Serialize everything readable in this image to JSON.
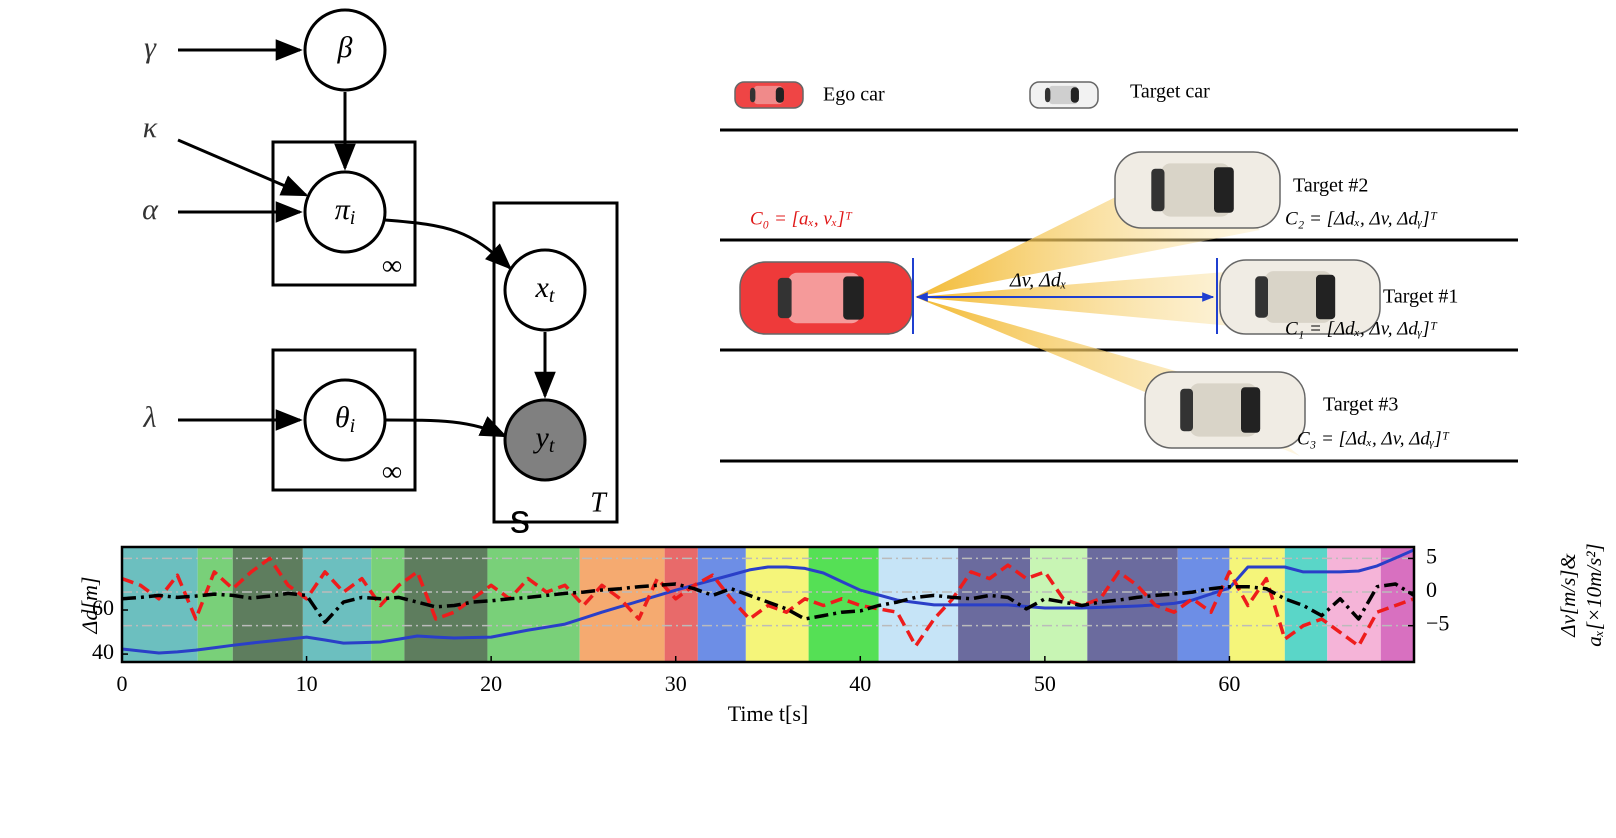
{
  "fragment_text": "s",
  "graphical_model": {
    "inputs": [
      "γ",
      "κ",
      "α",
      "λ"
    ],
    "nodes": [
      {
        "label": "β"
      },
      {
        "label": "π",
        "sub": "i"
      },
      {
        "label": "x",
        "sub": "t"
      },
      {
        "label": "θ",
        "sub": "i"
      },
      {
        "label": "y",
        "sub": "t",
        "observed": true
      }
    ],
    "plates": [
      "∞",
      "∞",
      "T"
    ]
  },
  "scene": {
    "legend": [
      "Ego car",
      "Target car"
    ],
    "ego_state": "C₀ = [aₓ, vₓ]ᵀ",
    "relation": "Δv, Δdₓ",
    "targets": [
      {
        "name": "Target #2",
        "state": "C₂ = [Δdₓ, Δv, Δdᵧ]ᵀ"
      },
      {
        "name": "Target #1",
        "state": "C₁ = [Δdₓ, Δv, Δdᵧ]ᵀ"
      },
      {
        "name": "Target #3",
        "state": "C₃ = [Δdₓ, Δv, Δdᵧ]ᵀ"
      }
    ]
  },
  "chart_data": {
    "type": "line",
    "xlabel": "Time t[s]",
    "ylabel": "Δd[m]",
    "y2label": [
      "Δv[m/s]&",
      "aₓ[×10m/s²]"
    ],
    "xlim": [
      0,
      70
    ],
    "xticks": [
      0,
      10,
      20,
      30,
      40,
      50,
      60
    ],
    "ylim": [
      36.4,
      88.6
    ],
    "yticks": [
      40,
      60
    ],
    "y2lim": [
      -10.4,
      6.7
    ],
    "y2ticks": [
      {
        "value": -5,
        "label": "−5"
      },
      0,
      5
    ],
    "grid": true,
    "regions": [
      {
        "start": 0,
        "end": 4.1,
        "color": "#6cbfbf"
      },
      {
        "start": 4.1,
        "end": 6,
        "color": "#79d079"
      },
      {
        "start": 6,
        "end": 9.8,
        "color": "#5e7d5e"
      },
      {
        "start": 9.8,
        "end": 13.5,
        "color": "#6cbfbf"
      },
      {
        "start": 13.5,
        "end": 15.3,
        "color": "#79d079"
      },
      {
        "start": 15.3,
        "end": 19.8,
        "color": "#5e7d5e"
      },
      {
        "start": 19.8,
        "end": 24.8,
        "color": "#79d079"
      },
      {
        "start": 24.8,
        "end": 29.4,
        "color": "#f5aa70"
      },
      {
        "start": 29.4,
        "end": 31.2,
        "color": "#e86a6a"
      },
      {
        "start": 31.2,
        "end": 33.8,
        "color": "#6d8ee6"
      },
      {
        "start": 33.8,
        "end": 37.2,
        "color": "#f5f57a"
      },
      {
        "start": 37.2,
        "end": 41,
        "color": "#55e055"
      },
      {
        "start": 41,
        "end": 45.3,
        "color": "#c6e4f7"
      },
      {
        "start": 45.3,
        "end": 49.2,
        "color": "#6b6b9e"
      },
      {
        "start": 49.2,
        "end": 52.3,
        "color": "#c8f5b4"
      },
      {
        "start": 52.3,
        "end": 57.2,
        "color": "#6b6b9e"
      },
      {
        "start": 57.2,
        "end": 60,
        "color": "#6d8ee6"
      },
      {
        "start": 60,
        "end": 63,
        "color": "#f5f57a"
      },
      {
        "start": 63,
        "end": 65.3,
        "color": "#5ad6c8"
      },
      {
        "start": 65.3,
        "end": 68.2,
        "color": "#f5b4d8"
      },
      {
        "start": 68.2,
        "end": 70,
        "color": "#d870c0"
      }
    ],
    "x": [
      0,
      1,
      2,
      3,
      4,
      5,
      6,
      7,
      8,
      9,
      10,
      11,
      12,
      13,
      14,
      15,
      16,
      17,
      18,
      19,
      20,
      21,
      22,
      23,
      24,
      25,
      26,
      27,
      28,
      29,
      30,
      31,
      32,
      33,
      34,
      35,
      36,
      37,
      38,
      39,
      40,
      41,
      42,
      43,
      44,
      45,
      46,
      47,
      48,
      49,
      50,
      51,
      52,
      53,
      54,
      55,
      56,
      57,
      58,
      59,
      60,
      61,
      62,
      63,
      64,
      65,
      66,
      67,
      68,
      69,
      70
    ],
    "series": [
      {
        "color": "#2a3fc8",
        "style": "solid",
        "values": [
          42.3,
          41.4,
          40.5,
          41,
          41.8,
          42.9,
          44,
          45,
          45.9,
          46.8,
          47.7,
          46.4,
          45,
          45.2,
          45.5,
          46.8,
          48.2,
          47.7,
          47.3,
          47.5,
          47.7,
          49.3,
          50.9,
          52.2,
          53.6,
          56.3,
          59,
          61.5,
          64,
          66.5,
          69,
          71.3,
          73.6,
          75.9,
          78.2,
          79.5,
          79.5,
          78.9,
          76.8,
          72.9,
          69,
          66.8,
          64.5,
          63.4,
          62.3,
          62.3,
          62.3,
          62.3,
          62.3,
          61.6,
          60.9,
          60.9,
          60.9,
          61.2,
          61.5,
          61.8,
          62.3,
          63,
          64.5,
          67.3,
          70,
          79.5,
          79.5,
          79.5,
          77.3,
          77.3,
          77.3,
          77.7,
          80,
          83.6,
          87.3
        ]
      },
      {
        "color": "#ee1c1c",
        "style": "dashed",
        "axis": "y2",
        "values": [
          2,
          1,
          -1,
          2.5,
          -4,
          3,
          0.5,
          3,
          5,
          1,
          -1,
          3,
          0,
          2,
          -2,
          1,
          3,
          -4,
          -3,
          -1,
          1,
          -1,
          2,
          0,
          1,
          -2,
          1,
          -1,
          -4,
          2,
          -1,
          1,
          2.5,
          -1,
          -4,
          -2,
          -3,
          -1,
          -2,
          -1,
          -2,
          -2.5,
          -3,
          -8,
          -4,
          -1,
          3,
          2,
          4,
          2,
          3,
          -1,
          -2,
          -1,
          3,
          1,
          -2,
          -3,
          -1,
          -3,
          3,
          -2,
          2,
          -7,
          -5,
          -4,
          -6,
          -8,
          -3,
          -2,
          -1
        ]
      },
      {
        "color": "#000000",
        "style": "dashdot",
        "axis": "y2",
        "values": [
          -1,
          -0.8,
          -0.5,
          -0.8,
          -0.6,
          -0.3,
          -0.5,
          -0.9,
          -0.6,
          -0.2,
          -0.5,
          -4.5,
          -1.5,
          -0.8,
          -1,
          -0.8,
          -1.5,
          -2.2,
          -2,
          -1.5,
          -1.3,
          -1,
          -0.8,
          -0.5,
          -0.2,
          0,
          0.3,
          0.5,
          0.8,
          1,
          1.2,
          0.5,
          -0.5,
          0.5,
          -0.5,
          -1.5,
          -2.5,
          -4,
          -3.5,
          -3,
          -2.8,
          -2,
          -1.5,
          -0.8,
          -0.5,
          -0.8,
          -1,
          -0.5,
          -0.8,
          -2.5,
          -1,
          -1.5,
          -2,
          -1.5,
          -1.2,
          -0.8,
          -0.5,
          -0.3,
          0,
          0.5,
          0.8,
          0.8,
          0.5,
          -1,
          -2,
          -3.5,
          -1,
          -4,
          0.8,
          1.2,
          -0.5
        ]
      }
    ]
  }
}
